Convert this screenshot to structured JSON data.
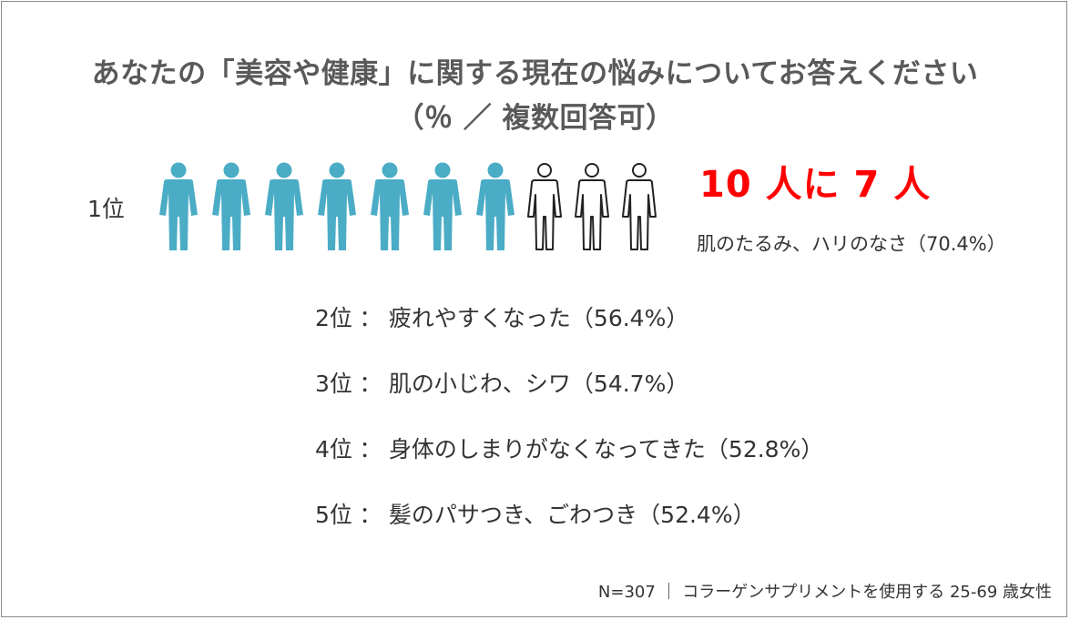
{
  "title": {
    "line1": "あなたの「美容や健康」に関する現在の悩みについてお答えください",
    "line2": "（％ ／ 複数回答可）"
  },
  "rank1": {
    "label": "1位",
    "headline": "10 人に 7 人",
    "detail": "肌のたるみ、ハリのなさ（70.4%）",
    "filled_people": 7,
    "total_people": 10,
    "filled_color": "#4bacc6",
    "outline_color": "#222222"
  },
  "ranks": [
    {
      "rank": "2位",
      "sep": "：",
      "text": "疲れやすくなった（56.4%）"
    },
    {
      "rank": "3位",
      "sep": "：",
      "text": "肌の小じわ、シワ（54.7%）"
    },
    {
      "rank": "4位",
      "sep": "：",
      "text": "身体のしまりがなくなってきた（52.8%）"
    },
    {
      "rank": "5位",
      "sep": "：",
      "text": "髪のパサつき、ごわつき（52.4%）"
    }
  ],
  "footer": "N=307 ｜ コラーゲンサプリメントを使用する 25-69 歳女性"
}
